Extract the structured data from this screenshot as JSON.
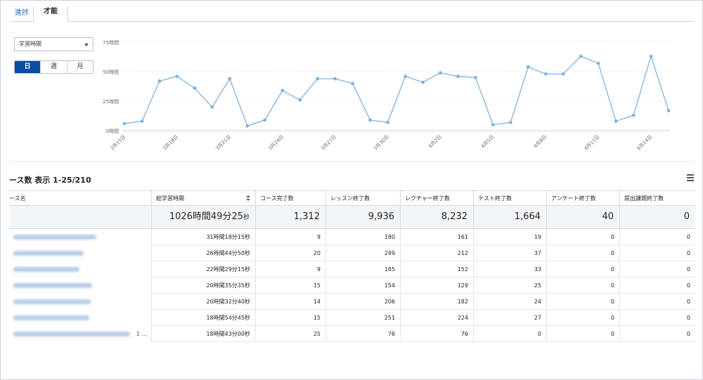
{
  "tabs": {
    "prev_label": "進捗",
    "active_label": "才能"
  },
  "filter": {
    "selected": "学習時間"
  },
  "period": {
    "options": [
      "日",
      "週",
      "月"
    ],
    "active_index": 0
  },
  "colors": {
    "accent": "#0b4ea2",
    "line": "#7fb3e0",
    "link": "#1f6fb8"
  },
  "chart_data": {
    "type": "line",
    "y_ticks": [
      "75時間",
      "50時間",
      "25時間",
      "0時間"
    ],
    "y_tick_values": [
      75,
      50,
      25,
      0
    ],
    "ylim": [
      0,
      75
    ],
    "x_tick_labels": [
      "3月15日",
      "3月18日",
      "3月21日",
      "3月24日",
      "3月27日",
      "3月30日",
      "4月2日",
      "4月5日",
      "4月8日",
      "4月11日",
      "4月14日"
    ],
    "x_tick_indices": [
      0,
      3,
      6,
      9,
      12,
      15,
      18,
      21,
      24,
      27,
      30
    ],
    "series": [
      {
        "values": [
          6,
          8,
          42,
          46,
          36,
          20,
          44,
          4,
          9,
          34,
          26,
          44,
          44,
          40,
          9,
          7,
          46,
          41,
          49,
          46,
          45,
          5,
          7,
          54,
          48,
          48,
          63,
          57,
          8,
          13,
          63,
          17
        ]
      }
    ],
    "grid": true,
    "legend": "none"
  },
  "table": {
    "count_title": "ース数 表示 1-25/210",
    "columns": [
      "ース名",
      "総学習時間",
      "コース完了数",
      "レッスン終了数",
      "レクチャー終了数",
      "テスト終了数",
      "アンケート終了数",
      "提出課題終了数"
    ],
    "totals": {
      "time_main": "1026時間49分25",
      "time_unit": "秒",
      "values": [
        "1,312",
        "9,936",
        "8,232",
        "1,664",
        "40",
        "0"
      ]
    },
    "rows": [
      {
        "time": "31時間18分15秒",
        "values": [
          "9",
          "180",
          "161",
          "19",
          "0",
          "0"
        ]
      },
      {
        "time": "26時間44分50秒",
        "values": [
          "20",
          "249",
          "212",
          "37",
          "0",
          "0"
        ]
      },
      {
        "time": "22時間29分15秒",
        "values": [
          "9",
          "185",
          "152",
          "33",
          "0",
          "0"
        ]
      },
      {
        "time": "20時間35分35秒",
        "values": [
          "15",
          "154",
          "129",
          "25",
          "0",
          "0"
        ]
      },
      {
        "time": "20時間32分40秒",
        "values": [
          "14",
          "206",
          "182",
          "24",
          "0",
          "0"
        ]
      },
      {
        "time": "18時間54分45秒",
        "values": [
          "15",
          "251",
          "224",
          "27",
          "0",
          "0"
        ]
      },
      {
        "time": "18時間43分00秒",
        "values": [
          "25",
          "76",
          "76",
          "0",
          "0",
          "0"
        ],
        "name_suffix": "1 ..."
      }
    ]
  }
}
